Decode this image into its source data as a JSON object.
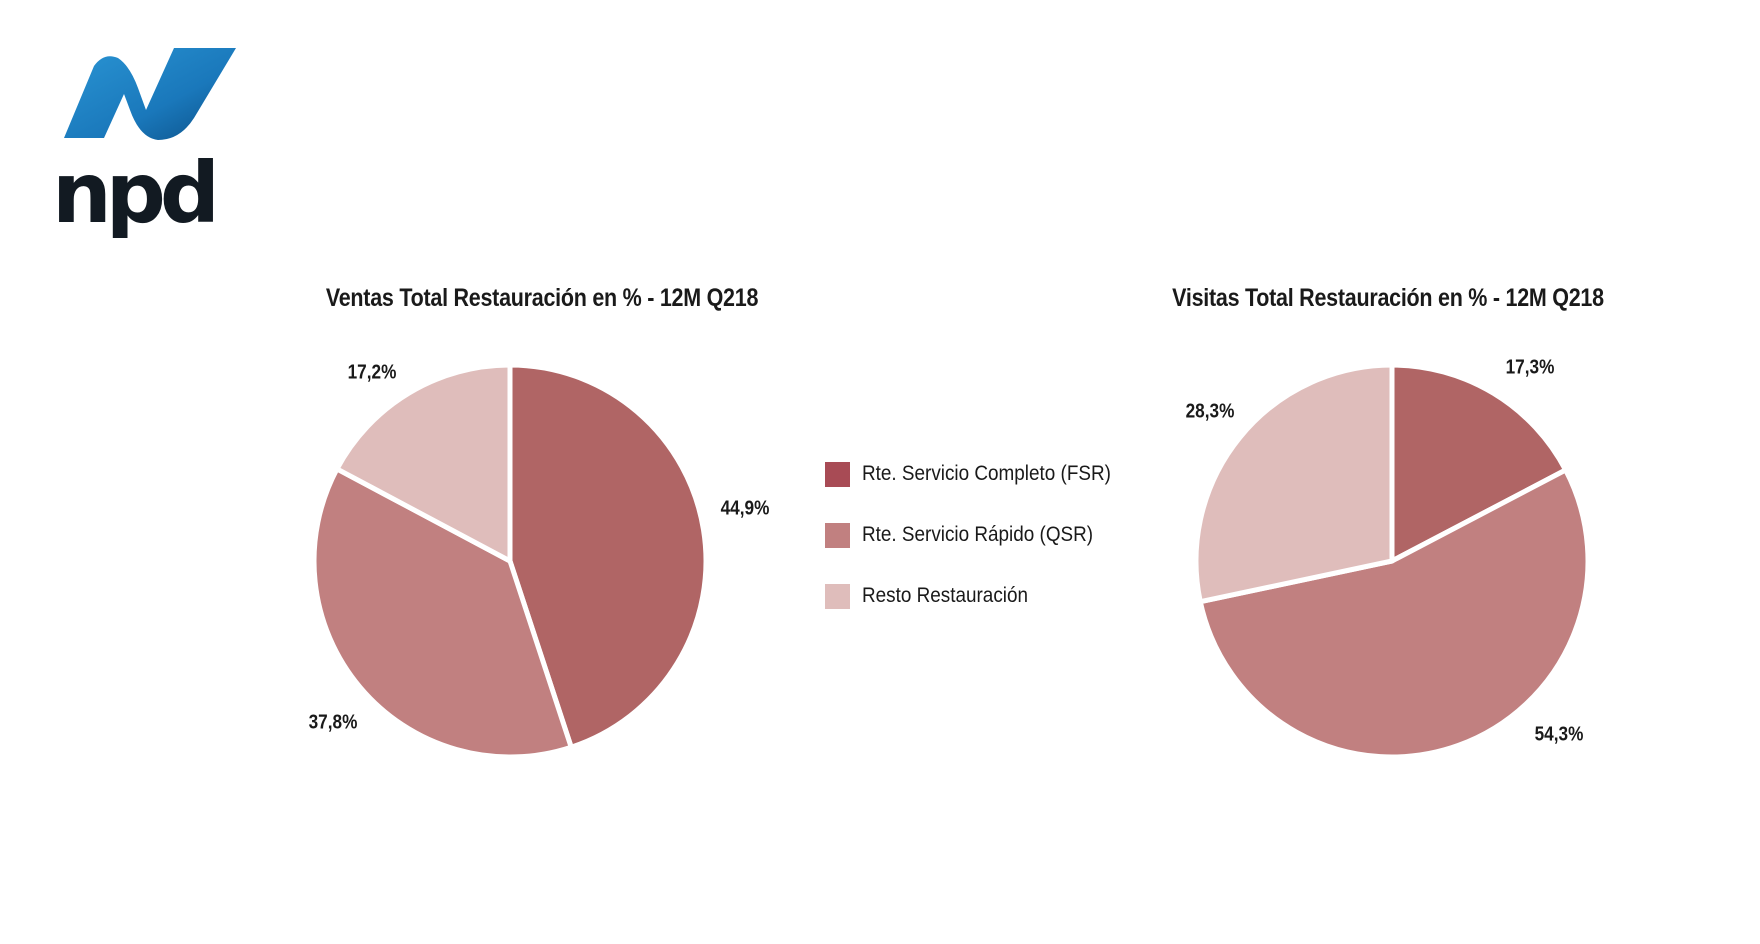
{
  "logo": {
    "text": "npd",
    "colors": {
      "ribbon_light": "#2a95d4",
      "ribbon_dark": "#0b4f86",
      "text": "#121a22"
    }
  },
  "colors": {
    "fsr": "#b06565",
    "qsr": "#c18080",
    "resto": "#dfbdbb",
    "fsr_legend": "#a84b55"
  },
  "legend": [
    {
      "label": "Rte. Servicio Completo (FSR)",
      "color": "#a84b55"
    },
    {
      "label": "Rte. Servicio Rápido (QSR)",
      "color": "#c18080"
    },
    {
      "label": "Resto Restauración",
      "color": "#dfbdbb"
    }
  ],
  "chart_data": [
    {
      "type": "pie",
      "title": "Ventas Total Restauración en % - 12M Q218",
      "categories": [
        "Rte. Servicio Completo (FSR)",
        "Rte. Servicio Rápido (QSR)",
        "Resto Restauración"
      ],
      "values": [
        44.9,
        37.8,
        17.2
      ],
      "labels": [
        "44,9%",
        "37,8%",
        "17,2%"
      ],
      "colors": [
        "#b06565",
        "#c18080",
        "#dfbdbb"
      ],
      "start": "top",
      "direction": "clockwise",
      "legend": "right"
    },
    {
      "type": "pie",
      "title": "Visitas Total Restauración en % - 12M Q218",
      "categories": [
        "Rte. Servicio Completo (FSR)",
        "Rte. Servicio Rápido (QSR)",
        "Resto Restauración"
      ],
      "values": [
        17.3,
        54.3,
        28.3
      ],
      "labels": [
        "17,3%",
        "54,3%",
        "28,3%"
      ],
      "colors": [
        "#b06565",
        "#c18080",
        "#dfbdbb"
      ],
      "start": "top",
      "direction": "clockwise",
      "legend": "left"
    }
  ]
}
